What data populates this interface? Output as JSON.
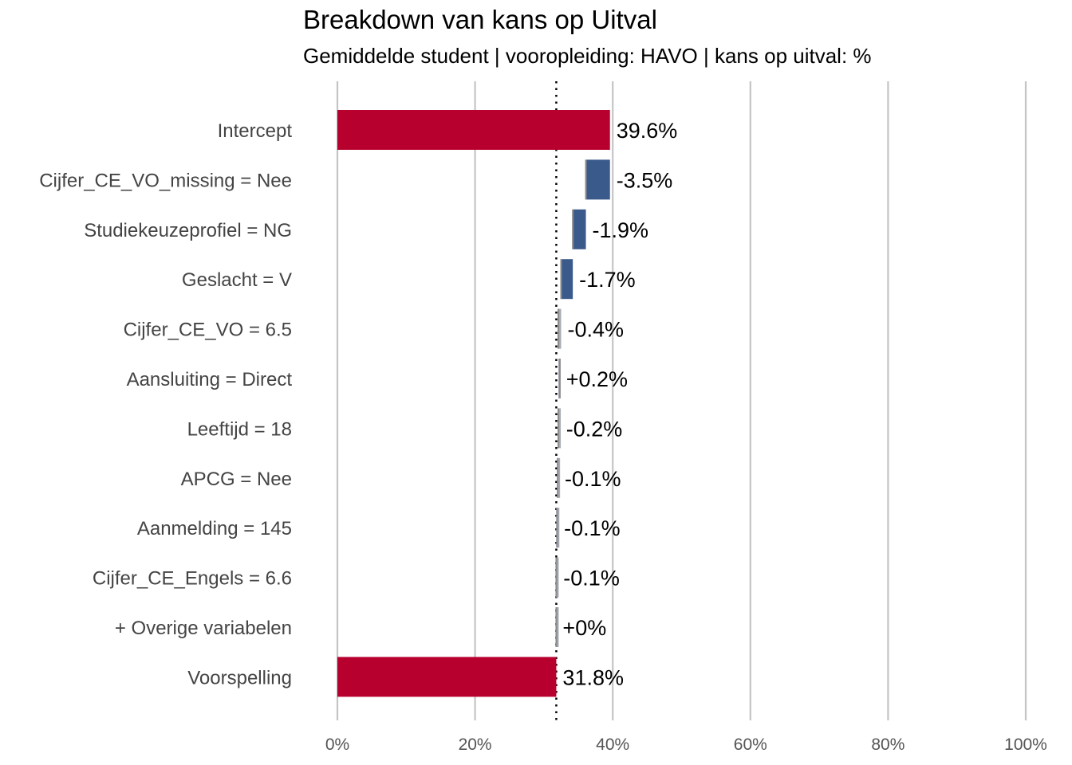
{
  "chart_data": {
    "type": "bar",
    "subtype": "waterfall-breakdown",
    "title": "Breakdown van kans op Uitval",
    "subtitle": "Gemiddelde student | vooropleiding: HAVO | kans op uitval: %",
    "xlim": [
      0,
      100
    ],
    "x_ticks": [
      0,
      20,
      40,
      60,
      80,
      100
    ],
    "x_tick_labels": [
      "0%",
      "20%",
      "40%",
      "60%",
      "80%",
      "100%"
    ],
    "grid": "vertical",
    "reference_line": 31.8,
    "colors": {
      "total": "#b8002e",
      "decrease": "#3b5a8c",
      "small": "#a6aab2",
      "connector": "#8c8c8c",
      "grid": "#c4c4c4"
    },
    "bars": [
      {
        "category": "Intercept",
        "start": 0,
        "end": 39.6,
        "label": "39.6%",
        "kind": "total"
      },
      {
        "category": "Cijfer_CE_VO_missing = Nee",
        "start": 39.6,
        "end": 36.1,
        "label": "-3.5%",
        "kind": "decrease"
      },
      {
        "category": "Studiekeuzeprofiel = NG",
        "start": 36.1,
        "end": 34.2,
        "label": "-1.9%",
        "kind": "decrease"
      },
      {
        "category": "Geslacht = V",
        "start": 34.2,
        "end": 32.5,
        "label": "-1.7%",
        "kind": "decrease"
      },
      {
        "category": "Cijfer_CE_VO = 6.5",
        "start": 32.5,
        "end": 32.1,
        "label": "-0.4%",
        "kind": "small"
      },
      {
        "category": "Aansluiting = Direct",
        "start": 32.1,
        "end": 32.3,
        "label": "+0.2%",
        "kind": "small"
      },
      {
        "category": "Leeftijd = 18",
        "start": 32.3,
        "end": 32.1,
        "label": "-0.2%",
        "kind": "small"
      },
      {
        "category": "APCG = Nee",
        "start": 32.1,
        "end": 32.0,
        "label": "-0.1%",
        "kind": "small"
      },
      {
        "category": "Aanmelding = 145",
        "start": 32.0,
        "end": 31.9,
        "label": "-0.1%",
        "kind": "small"
      },
      {
        "category": "Cijfer_CE_Engels = 6.6",
        "start": 31.9,
        "end": 31.8,
        "label": "-0.1%",
        "kind": "small"
      },
      {
        "category": "+ Overige variabelen",
        "start": 31.8,
        "end": 31.8,
        "label": "+0%",
        "kind": "small"
      },
      {
        "category": "Voorspelling",
        "start": 0,
        "end": 31.8,
        "label": "31.8%",
        "kind": "total"
      }
    ]
  }
}
